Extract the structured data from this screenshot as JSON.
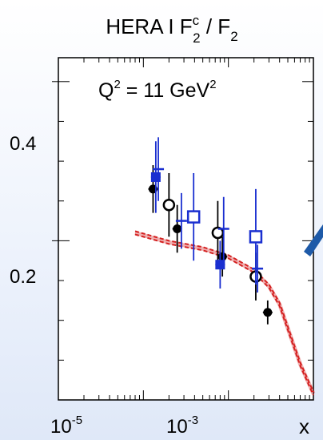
{
  "chart_data": {
    "type": "scatter",
    "title": {
      "main": "HERA I F",
      "sup": "c",
      "sub": "2",
      "rest": " / F",
      "sub2": "2"
    },
    "annotation": {
      "q": "Q",
      "q_sup": "2",
      "mid": " = 11 GeV",
      "unit_sup": "2"
    },
    "xlabel": "x",
    "x_scale": "log",
    "xlim": [
      1e-05,
      0.01
    ],
    "ylim": [
      0.0,
      0.43
    ],
    "x_tick_labels": [
      {
        "value": 1e-05,
        "base": "10",
        "exp": "-5"
      },
      {
        "value": 0.001,
        "base": "10",
        "exp": "-3"
      }
    ],
    "y_tick_labels": [
      {
        "value": 0.2,
        "text": "0.2"
      },
      {
        "value": 0.4,
        "text": "0.4"
      }
    ],
    "colors": {
      "theory": "#d42020",
      "blue": "#1a2fd0",
      "black": "#000000",
      "accent_arrow": "#1e5aa8"
    },
    "series": [
      {
        "marker": "black-filled-circle",
        "points": [
          {
            "x": 0.00013,
            "y": 0.265,
            "err": 0.03
          },
          {
            "x": 0.00025,
            "y": 0.215,
            "err": 0.03
          },
          {
            "x": 0.00085,
            "y": 0.18,
            "err": 0.025
          },
          {
            "x": 0.0029,
            "y": 0.11,
            "err": 0.015
          }
        ]
      },
      {
        "marker": "black-open-circle",
        "points": [
          {
            "x": 0.0002,
            "y": 0.245,
            "err": 0.04
          },
          {
            "x": 0.00075,
            "y": 0.21,
            "err": 0.04
          },
          {
            "x": 0.0021,
            "y": 0.155,
            "err": 0.03
          }
        ]
      },
      {
        "marker": "blue-filled-square",
        "points": [
          {
            "x": 0.00014,
            "y": 0.28,
            "err": 0.045
          },
          {
            "x": 0.0008,
            "y": 0.17,
            "err": 0.03
          }
        ]
      },
      {
        "marker": "blue-open-square",
        "points": [
          {
            "x": 0.00039,
            "y": 0.23,
            "err": 0.055
          },
          {
            "x": 0.0021,
            "y": 0.205,
            "err": 0.06
          }
        ]
      },
      {
        "marker": "blue-cross",
        "points": [
          {
            "x": 0.00015,
            "y": 0.29,
            "err": 0.04
          },
          {
            "x": 0.00028,
            "y": 0.225,
            "err": 0.035
          },
          {
            "x": 0.00088,
            "y": 0.215,
            "err": 0.04
          },
          {
            "x": 0.0022,
            "y": 0.165,
            "err": 0.03
          }
        ]
      }
    ],
    "theory_curve": {
      "style": "red dashed band",
      "points": [
        {
          "x": 8e-05,
          "y": 0.21
        },
        {
          "x": 0.0002,
          "y": 0.198
        },
        {
          "x": 0.0005,
          "y": 0.19
        },
        {
          "x": 0.001,
          "y": 0.18
        },
        {
          "x": 0.002,
          "y": 0.162
        },
        {
          "x": 0.003,
          "y": 0.143
        },
        {
          "x": 0.004,
          "y": 0.12
        },
        {
          "x": 0.005,
          "y": 0.09
        },
        {
          "x": 0.007,
          "y": 0.045
        },
        {
          "x": 0.01,
          "y": 0.008
        }
      ]
    }
  }
}
